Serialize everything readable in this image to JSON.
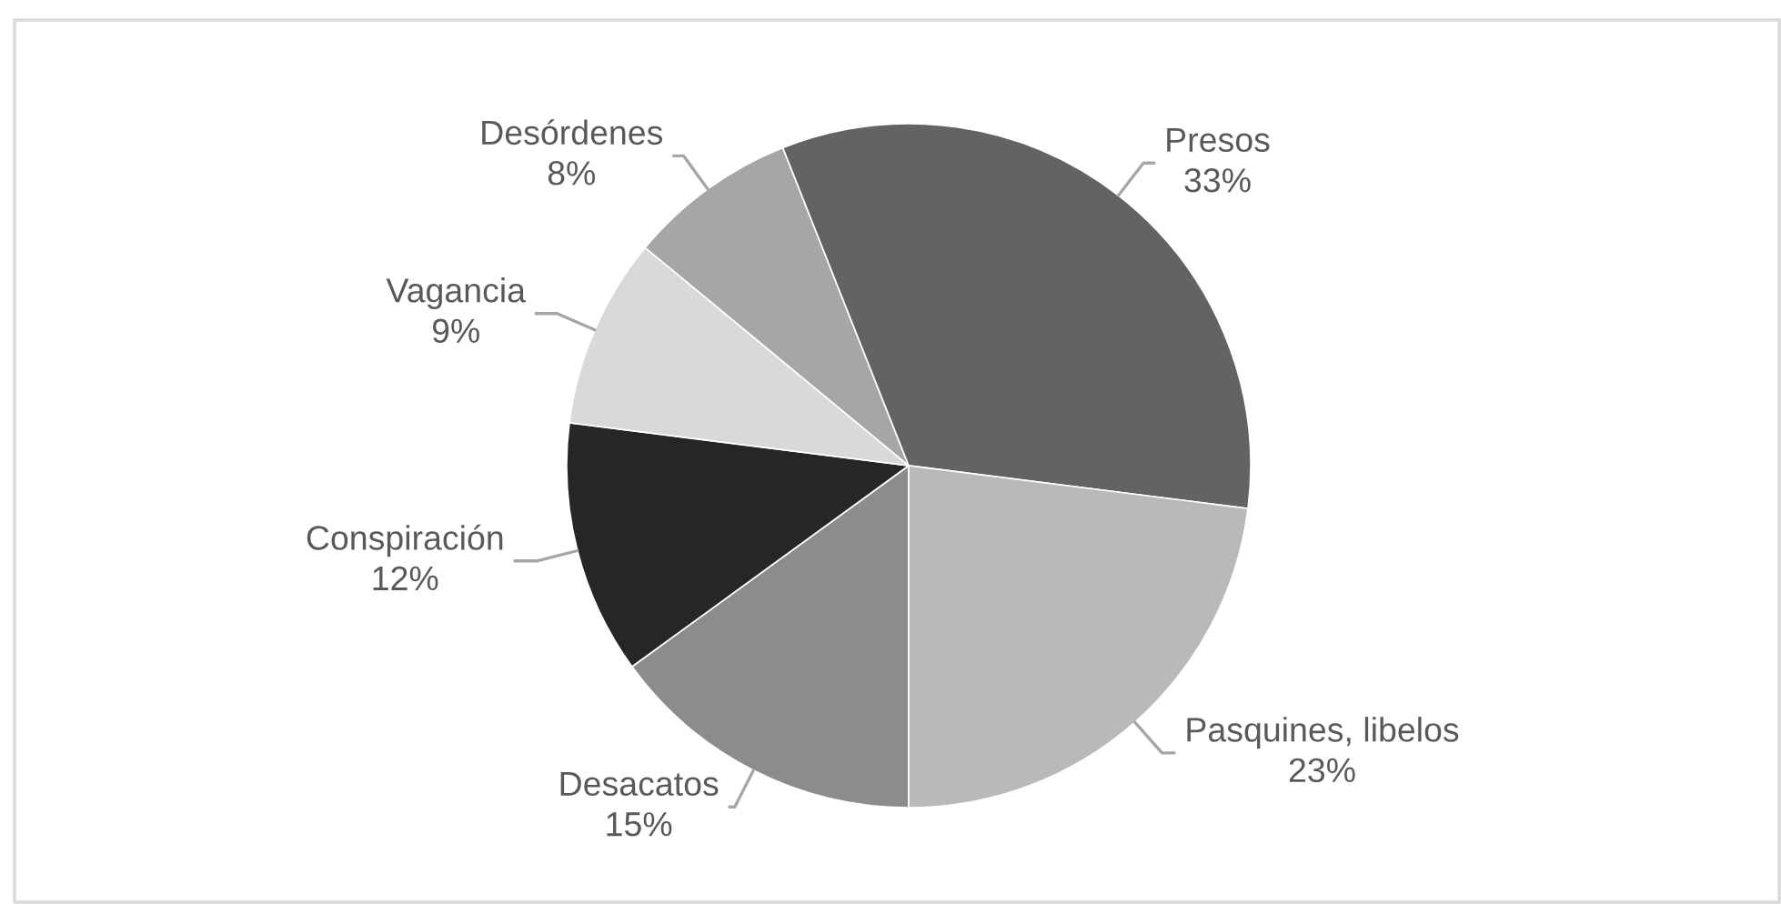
{
  "chart_data": {
    "type": "pie",
    "categories": [
      "Desacatos",
      "Conspiración",
      "Vagancia",
      "Desórdenes",
      "Presos",
      "Pasquines, libelos"
    ],
    "values": [
      15,
      12,
      9,
      8,
      33,
      23
    ],
    "colors": [
      "#8c8c8c",
      "#262626",
      "#d9d9d9",
      "#a6a6a6",
      "#636363",
      "#b9b9b9"
    ],
    "value_labels": [
      "15%",
      "12%",
      "9%",
      "8%",
      "33%",
      "23%"
    ]
  }
}
